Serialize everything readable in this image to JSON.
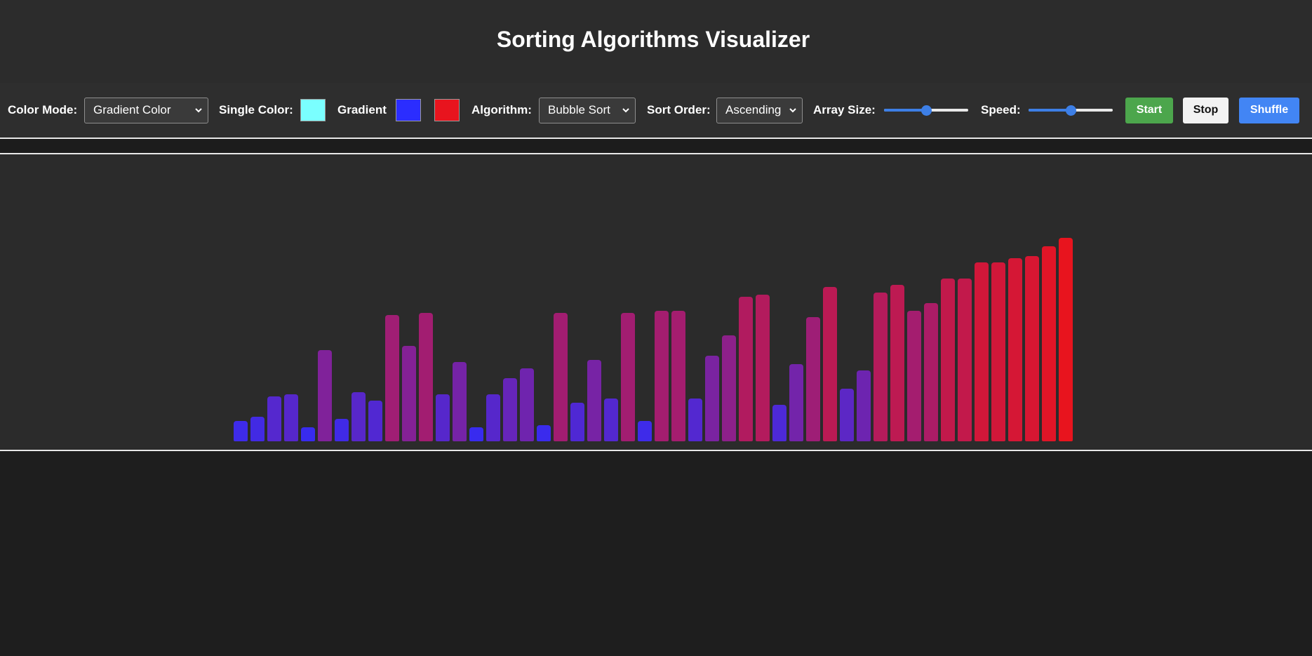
{
  "header": {
    "title": "Sorting Algorithms Visualizer"
  },
  "controls": {
    "color_mode_label": "Color Mode:",
    "color_mode_value": "Gradient Color",
    "single_color_label": "Single Color:",
    "single_color": "#7affff",
    "gradient_label": "Gradient",
    "gradient_start": "#2b2dff",
    "gradient_end": "#e8141e",
    "algorithm_label": "Algorithm:",
    "algorithm_value": "Bubble Sort",
    "sort_order_label": "Sort Order:",
    "sort_order_value": "Ascending",
    "array_size_label": "Array Size:",
    "array_size_level": 0.5,
    "speed_label": "Speed:",
    "speed_level": 0.5,
    "start_label": "Start",
    "stop_label": "Stop",
    "shuffle_label": "Shuffle",
    "start_color": "#4ca64c",
    "stop_color": "#f2f2f2",
    "shuffle_color": "#4285f4"
  },
  "chart_data": {
    "type": "bar",
    "max_value": 100,
    "values": [
      10,
      12,
      22,
      23,
      7,
      45,
      11,
      24,
      20,
      62,
      47,
      63,
      23,
      39,
      7,
      23,
      31,
      36,
      8,
      63,
      19,
      40,
      21,
      63,
      10,
      64,
      64,
      21,
      42,
      52,
      71,
      72,
      18,
      38,
      61,
      76,
      26,
      35,
      73,
      77,
      64,
      68,
      80,
      80,
      88,
      88,
      90,
      91,
      96,
      100
    ]
  }
}
